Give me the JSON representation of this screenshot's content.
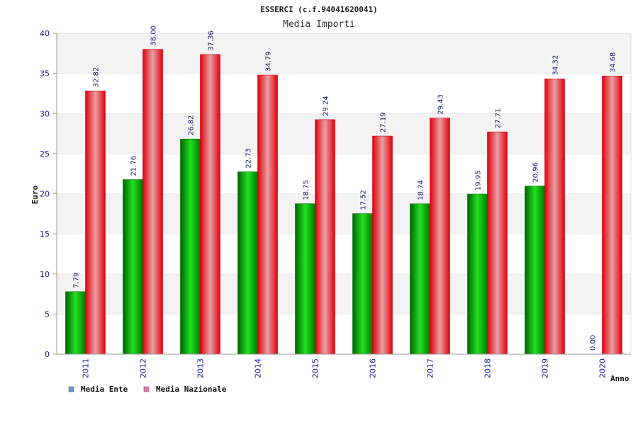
{
  "chart_data": {
    "type": "bar",
    "title": "ESSERCI (c.f.94041620041)",
    "subtitle": "Media Importi",
    "xlabel": "Anno",
    "ylabel": "Euro",
    "ylim": [
      0,
      40
    ],
    "yticks": [
      "0",
      "5",
      "10",
      "15",
      "20",
      "25",
      "30",
      "35",
      "40"
    ],
    "categories": [
      "2011",
      "2012",
      "2013",
      "2014",
      "2015",
      "2016",
      "2017",
      "2018",
      "2019",
      "2020"
    ],
    "series": [
      {
        "name": "Media Ente",
        "color": "#00aa00",
        "legend_color": "#5b9bd5",
        "values": [
          7.79,
          21.76,
          26.82,
          22.73,
          18.75,
          17.52,
          18.74,
          19.95,
          20.96,
          0.0
        ],
        "labels": [
          "7.79",
          "21.76",
          "26.82",
          "22.73",
          "18.75",
          "17.52",
          "18.74",
          "19.95",
          "20.96",
          "0.00"
        ]
      },
      {
        "name": "Media Nazionale",
        "color": "#e8101a",
        "legend_color": "#e07aa8",
        "values": [
          32.82,
          38.0,
          37.36,
          34.79,
          29.24,
          27.19,
          29.43,
          27.71,
          34.32,
          34.68
        ],
        "labels": [
          "32.82",
          "38.00",
          "37.36",
          "34.79",
          "29.24",
          "27.19",
          "29.43",
          "27.71",
          "34.32",
          "34.68"
        ]
      }
    ],
    "grid": true,
    "legend_position": "bottom-left"
  }
}
